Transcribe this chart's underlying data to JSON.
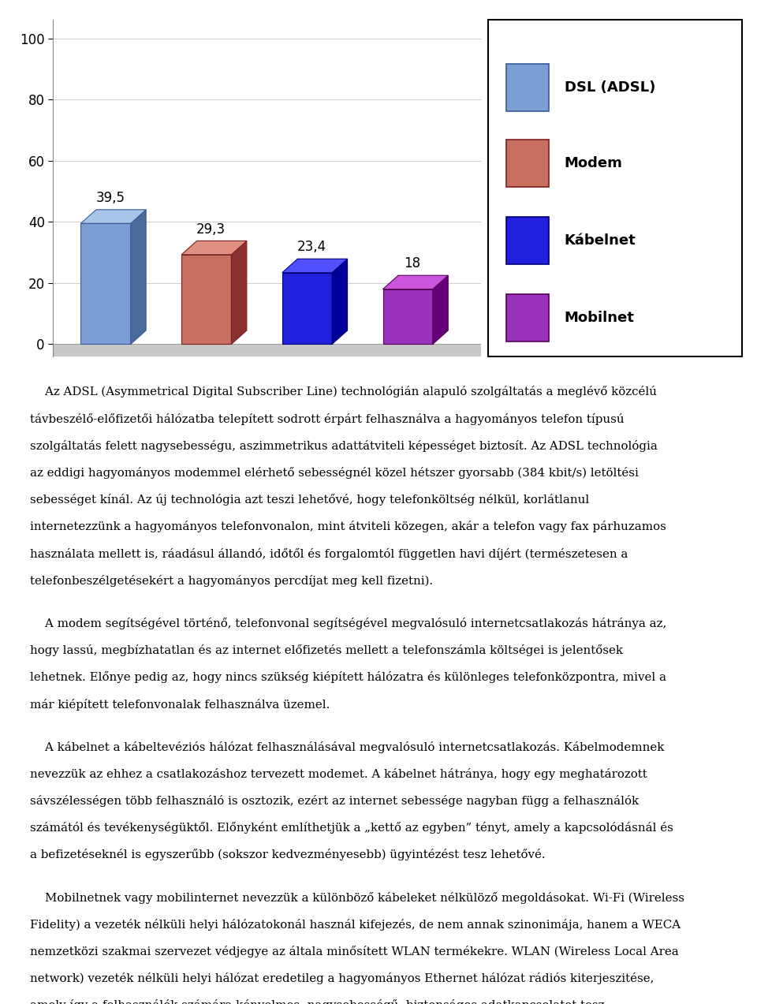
{
  "categories": [
    "DSL (ADSL)",
    "Modem",
    "Kábelnet",
    "Mobilnet"
  ],
  "values": [
    39.5,
    29.3,
    23.4,
    18
  ],
  "bar_colors": [
    "#7B9FD4",
    "#C87060",
    "#2020DD",
    "#9933BB"
  ],
  "bar_top_colors": [
    "#A8C4E8",
    "#E09080",
    "#5050FF",
    "#CC55DD"
  ],
  "bar_side_colors": [
    "#4A6A9A",
    "#8B3030",
    "#000099",
    "#660077"
  ],
  "bar_edge_colors": [
    "#3A5A9A",
    "#7B2020",
    "#00007B",
    "#550055"
  ],
  "bar_labels": [
    "39,5",
    "29,3",
    "23,4",
    "18"
  ],
  "legend_labels": [
    "DSL (ADSL)",
    "Modem",
    "Kábelnet",
    "Mobilnet"
  ],
  "ylim": [
    0,
    100
  ],
  "yticks": [
    0,
    20,
    40,
    60,
    80,
    100
  ],
  "background_color": "#ffffff",
  "grid_color": "#d0d0d0",
  "bar_label_fontsize": 12,
  "legend_fontsize": 13,
  "tick_fontsize": 12,
  "para1": "Az ADSL (Asymmetrical Digital Subscriber Line) technológián alapuló szolgáltatás a meglévő közcélú távbeszélő-előfizetői hálózatba telepített sodrott érpárt felhasználva a hagyományos telefon típusú szolgáltatás felett nagysebességu, aszimmetrikus adattátviteli képességet biztosít. Az ADSL technológia az eddigi hagyományos modemmel elérhető sebességnél közel hétszer gyorsabb (384 kbit/s) letöltési sebességet kínál. Az új technológia azt teszi lehetővé, hogy telefonköltség nélkül, korlátlanul internetezzünk a hagyományos telefonvonalon, mint átviteli közegen, akár a telefon vagy fax párhuzamos használata mellett is, ráadásul állandó, időtől és forgalomtól független havi díjért (természetesen a telefonbeszélgetésekért a hagyományos percdíjat meg kell fizetni).",
  "para2": "A modem segítségével történő, telefonvonal segítségével megvalósuló internetcsatlakozás hátránya az, hogy lassú, megbízhatatlan és az internet előfizetés mellett a telefonszámla költségei is jelentősek lehetnek. Előnye pedig az, hogy nincs szükség kiépített hálózatra és különleges telefonközpontra, mivel a már kiépített telefonvonalak felhasználva üzemel.",
  "para3": "A kábelnet a kábeltevéziós hálózat felhasználásával megvalósuló internetcsatlakozás. Kábelmodemnek nevezzük az ehhez a csatlakozáshoz tervezett modemet. A kábelnet hátránya, hogy egy meghatározott sávszélességen több felhasználó is osztozik, ezért az internet sebessége nagyban függ a felhasználók számától és tevékenységüktől. Előnyként említhetjük a „kettő az egyben” tényt, amely a kapcsolódásnál és a befizetéseknél is egyszerűbb (sokszor kedvezményesebb) ügyintézést tesz lehetővé.",
  "para4": "Mobilnetnek vagy mobilinternet nevezzük a különböző kábeleket nélkülöző megoldásokat. Wi-Fi (Wireless Fidelity) a vezeték nélküli helyi hálózatokonál használ kifejezés, de nem annak szinonimája, hanem a WECA nemzetközi szakmai szervezet védjegye az általa minősített WLAN termékekre. WLAN (Wireless Local Area network) vezeték nélküli helyi hálózat eredetileg a hagyományos Ethernet hálózat rádiós kiterjeszitése, amely így a felhasználók számára kényelmes, nagysebességű, biztonságos adatkapcsolatot tesz"
}
